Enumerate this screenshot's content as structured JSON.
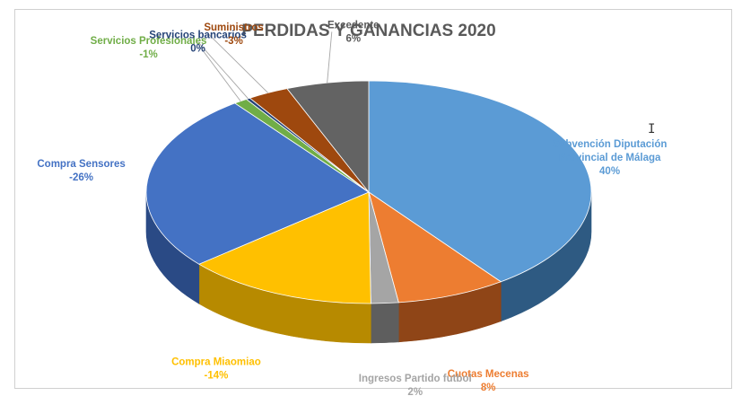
{
  "chart_data": {
    "type": "pie",
    "title": "PERDIDAS Y GANANCIAS 2020",
    "slices": [
      {
        "name": "Subvención Diputación Provincial de Málaga",
        "label_lines": [
          "Subvención Diputación",
          "Provincial de Málaga"
        ],
        "pct_label": "40%",
        "value": 40,
        "color": "#5B9BD5",
        "side": "#2E5A82"
      },
      {
        "name": "Cuotas Mecenas",
        "label_lines": [
          "Cuotas Mecenas"
        ],
        "pct_label": "8%",
        "value": 8,
        "color": "#ED7D31",
        "side": "#8F4517"
      },
      {
        "name": "Ingresos Partido futbol",
        "label_lines": [
          "Ingresos Partido futbol"
        ],
        "pct_label": "2%",
        "value": 2,
        "color": "#A5A5A5",
        "side": "#5E5E5E"
      },
      {
        "name": "Compra Miaomiao",
        "label_lines": [
          "Compra Miaomiao"
        ],
        "pct_label": "-14%",
        "value": 14,
        "color": "#FFC000",
        "side": "#B78A00"
      },
      {
        "name": "Compra Sensores",
        "label_lines": [
          "Compra Sensores"
        ],
        "pct_label": "-26%",
        "value": 26,
        "color": "#4472C4",
        "side": "#2A4A85"
      },
      {
        "name": "Servicios Profesionales",
        "label_lines": [
          "Servicios Profesionales"
        ],
        "pct_label": "-1%",
        "value": 1,
        "color": "#70AD47",
        "side": "#466E2B"
      },
      {
        "name": "Servicios bancarios",
        "label_lines": [
          "Servicios bancarios"
        ],
        "pct_label": "0%",
        "value": 0.3,
        "color": "#264478",
        "side": "#17294A"
      },
      {
        "name": "Suministros",
        "label_lines": [
          "Suministros"
        ],
        "pct_label": "-3%",
        "value": 3,
        "color": "#9E480E",
        "side": "#5E2A08"
      },
      {
        "name": "Excedente",
        "label_lines": [
          "Excedente"
        ],
        "pct_label": "6%",
        "value": 6,
        "color": "#636363",
        "side": "#3A3A3A"
      }
    ],
    "label_colors": [
      "#5B9BD5",
      "#ED7D31",
      "#A5A5A5",
      "#FFC000",
      "#4472C4",
      "#70AD47",
      "#264478",
      "#9E480E",
      "#595959"
    ],
    "legend": "none"
  }
}
